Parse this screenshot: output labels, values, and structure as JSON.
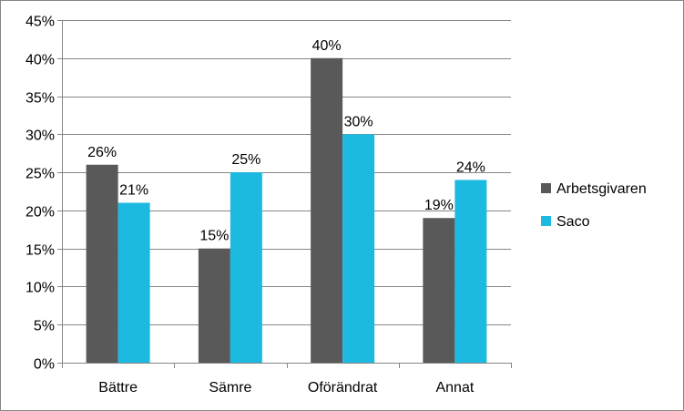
{
  "chart_data": {
    "type": "bar",
    "title": "",
    "xlabel": "",
    "ylabel": "",
    "categories": [
      "Bättre",
      "Sämre",
      "Oförändrat",
      "Annat"
    ],
    "series": [
      {
        "name": "Arbetsgivaren",
        "values": [
          26,
          15,
          40,
          19
        ],
        "color": "#595959"
      },
      {
        "name": "Saco",
        "values": [
          21,
          25,
          30,
          24
        ],
        "color": "#1CB9E0"
      }
    ],
    "ylim": [
      0,
      45
    ],
    "yticks": [
      0,
      5,
      10,
      15,
      20,
      25,
      30,
      35,
      40,
      45
    ],
    "ytick_labels": [
      "0%",
      "5%",
      "10%",
      "15%",
      "20%",
      "25%",
      "30%",
      "35%",
      "40%",
      "45%"
    ],
    "data_labels": [
      [
        "26%",
        "15%",
        "40%",
        "19%"
      ],
      [
        "21%",
        "25%",
        "30%",
        "24%"
      ]
    ],
    "grid": "y-major",
    "legend": "right"
  }
}
